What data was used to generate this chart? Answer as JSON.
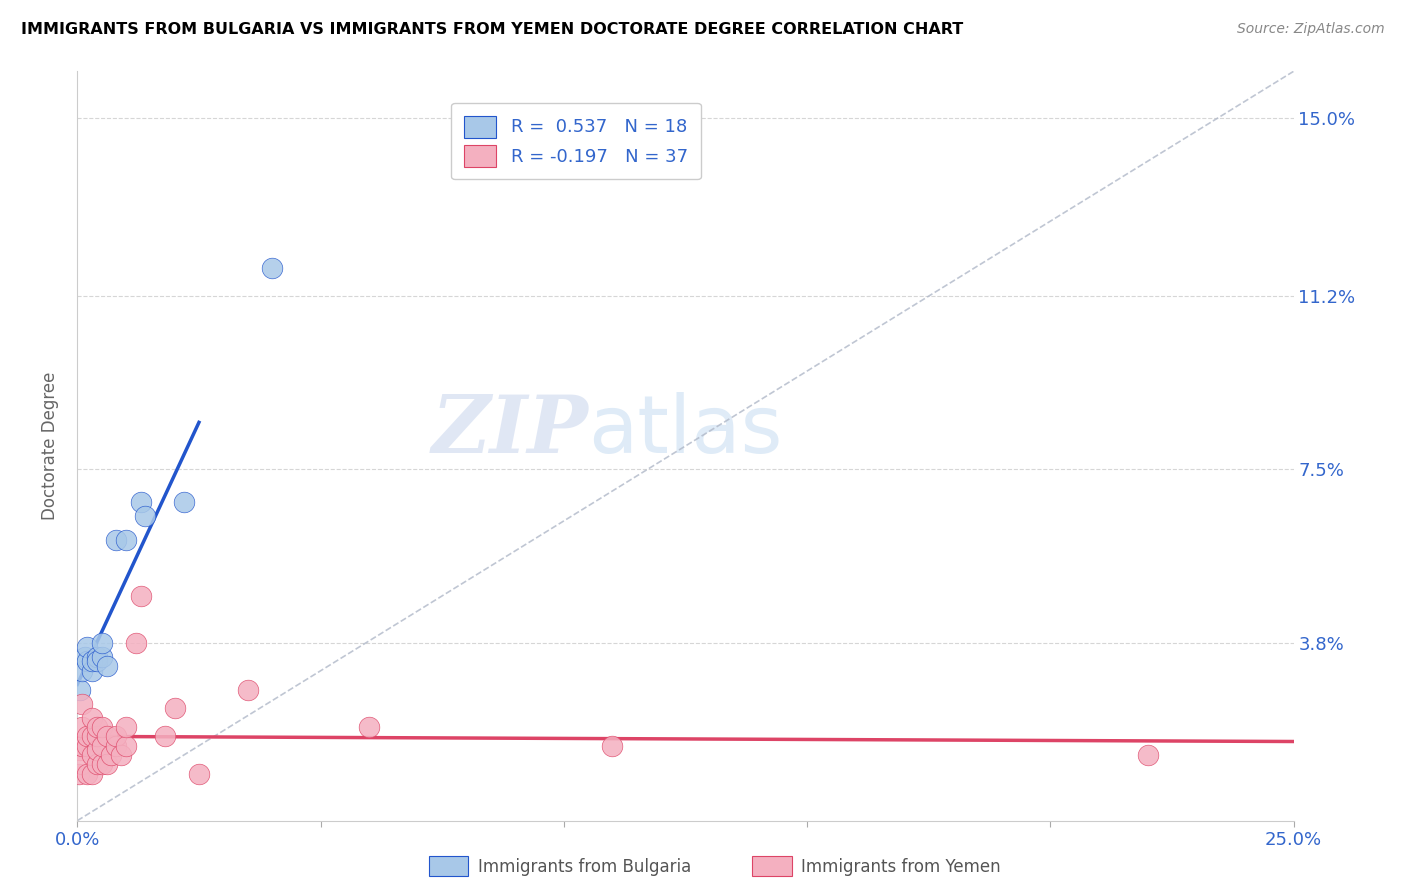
{
  "title": "IMMIGRANTS FROM BULGARIA VS IMMIGRANTS FROM YEMEN DOCTORATE DEGREE CORRELATION CHART",
  "source": "Source: ZipAtlas.com",
  "ylabel": "Doctorate Degree",
  "ytick_labels": [
    "15.0%",
    "11.2%",
    "7.5%",
    "3.8%"
  ],
  "ytick_values": [
    0.15,
    0.112,
    0.075,
    0.038
  ],
  "xlim": [
    0.0,
    0.25
  ],
  "ylim": [
    0.0,
    0.16
  ],
  "color_bulgaria": "#a8c8e8",
  "color_yemen": "#f4b0c0",
  "line_color_bulgaria": "#2255cc",
  "line_color_yemen": "#dd4466",
  "diag_color": "#b0b8c8",
  "watermark_zip": "ZIP",
  "watermark_atlas": "atlas",
  "legend_r_bulgaria": "0.537",
  "legend_n_bulgaria": "18",
  "legend_r_yemen": "-0.197",
  "legend_n_yemen": "37",
  "bulgaria_x": [
    0.0005,
    0.001,
    0.0015,
    0.002,
    0.002,
    0.003,
    0.003,
    0.004,
    0.004,
    0.005,
    0.005,
    0.006,
    0.008,
    0.01,
    0.013,
    0.014,
    0.022,
    0.04
  ],
  "bulgaria_y": [
    0.028,
    0.032,
    0.035,
    0.034,
    0.037,
    0.032,
    0.034,
    0.035,
    0.034,
    0.035,
    0.038,
    0.033,
    0.06,
    0.06,
    0.068,
    0.065,
    0.068,
    0.118
  ],
  "yemen_x": [
    0.0003,
    0.0005,
    0.001,
    0.001,
    0.001,
    0.001,
    0.002,
    0.002,
    0.002,
    0.003,
    0.003,
    0.003,
    0.003,
    0.004,
    0.004,
    0.004,
    0.004,
    0.005,
    0.005,
    0.005,
    0.006,
    0.006,
    0.007,
    0.008,
    0.008,
    0.009,
    0.01,
    0.01,
    0.012,
    0.013,
    0.018,
    0.02,
    0.025,
    0.035,
    0.06,
    0.11,
    0.22
  ],
  "yemen_y": [
    0.01,
    0.015,
    0.012,
    0.016,
    0.02,
    0.025,
    0.01,
    0.016,
    0.018,
    0.01,
    0.014,
    0.018,
    0.022,
    0.012,
    0.015,
    0.018,
    0.02,
    0.012,
    0.016,
    0.02,
    0.012,
    0.018,
    0.014,
    0.016,
    0.018,
    0.014,
    0.016,
    0.02,
    0.038,
    0.048,
    0.018,
    0.024,
    0.01,
    0.028,
    0.02,
    0.016,
    0.014
  ]
}
